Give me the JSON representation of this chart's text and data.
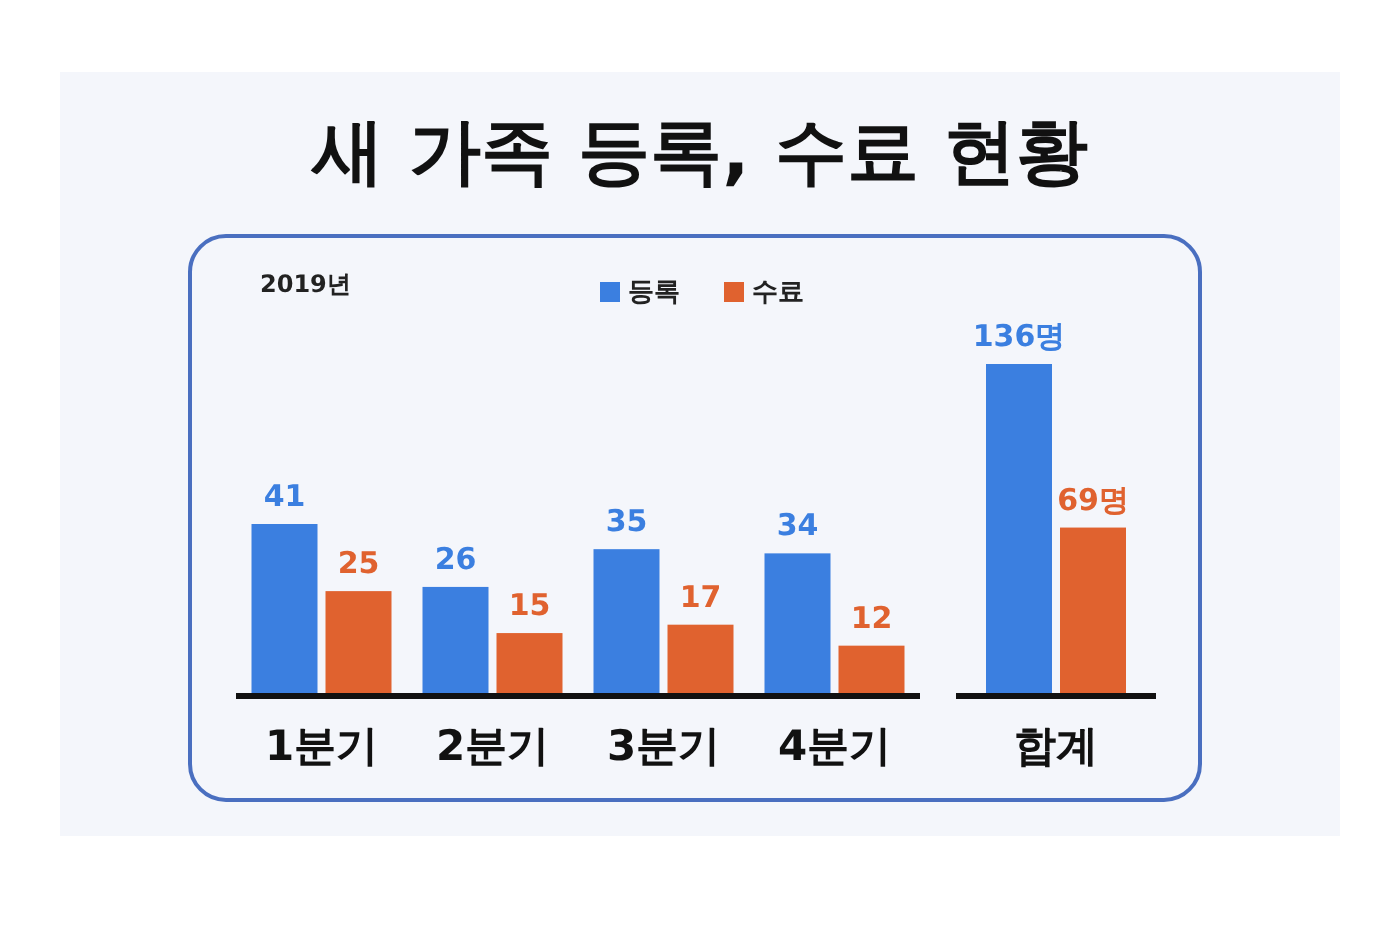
{
  "chart_data": [
    {
      "type": "bar",
      "title": "새 가족 등록, 수료 현황",
      "annotations": [
        "2019년"
      ],
      "categories": [
        "1분기",
        "2분기",
        "3분기",
        "4분기"
      ],
      "data_labels": true,
      "legend": "top",
      "series": [
        {
          "name": "등록",
          "color": "#3b7fe0",
          "values": [
            41,
            26,
            35,
            34
          ]
        },
        {
          "name": "수료",
          "color": "#e0622f",
          "values": [
            25,
            15,
            17,
            12
          ]
        }
      ]
    },
    {
      "type": "bar",
      "categories": [
        "합계"
      ],
      "legend": false,
      "series": [
        {
          "color": "#3b7fe0",
          "values": [
            136
          ],
          "value_labels": [
            "136명"
          ]
        },
        {
          "color": "#e0622f",
          "values": [
            69
          ],
          "value_labels": [
            "69명"
          ]
        }
      ]
    }
  ]
}
